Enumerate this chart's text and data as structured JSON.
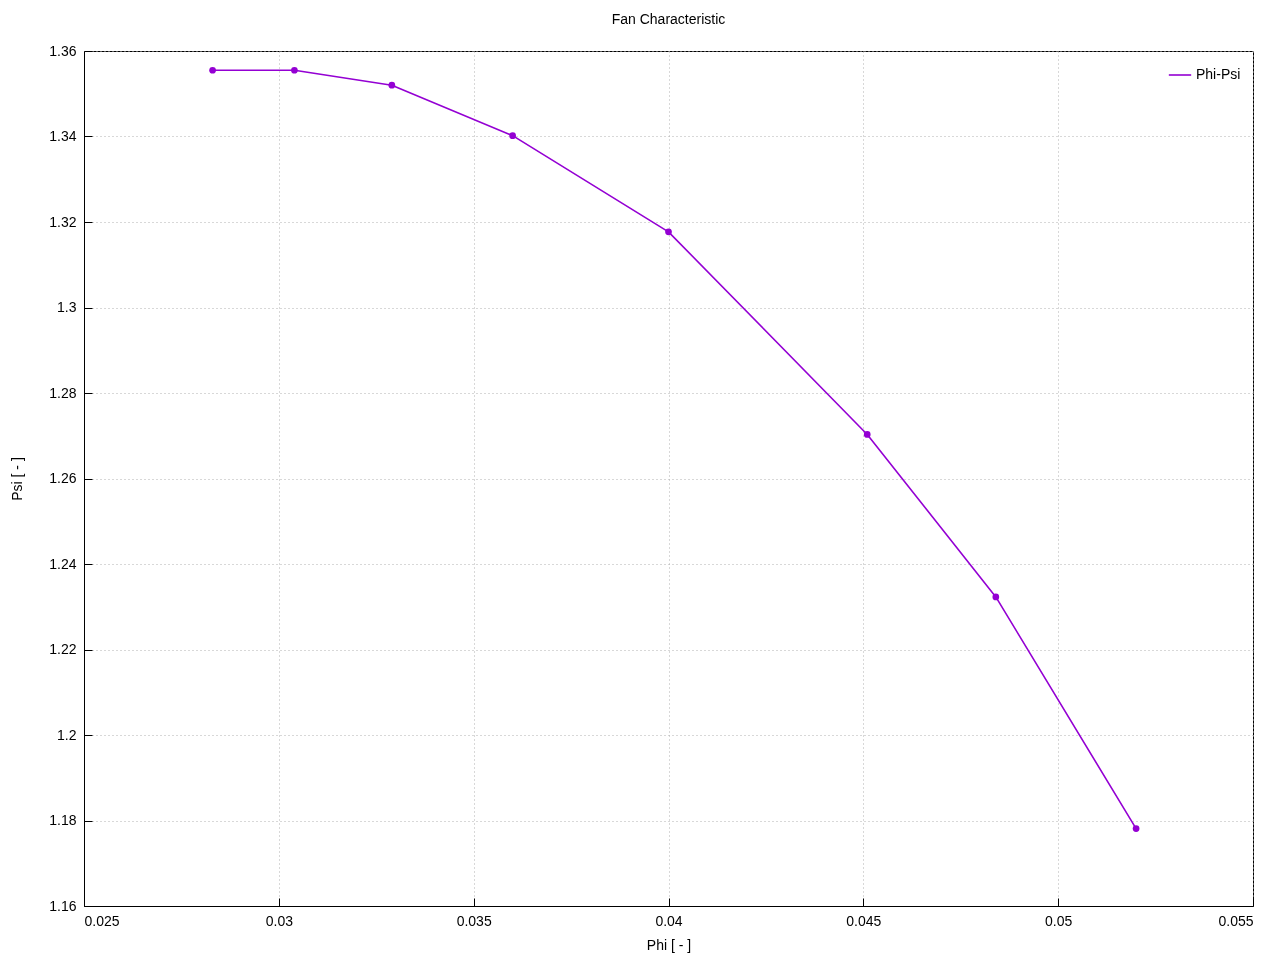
{
  "chart_data": {
    "type": "line",
    "title": "Fan Characteristic",
    "xlabel": "Phi [ - ]",
    "ylabel": "Psi [ - ]",
    "x": [
      0.0283,
      0.0304,
      0.0329,
      0.036,
      0.04,
      0.0451,
      0.0484,
      0.052
    ],
    "series": [
      {
        "name": "Phi-Psi",
        "color": "#9400d3",
        "values": [
          1.3555,
          1.3555,
          1.352,
          1.3402,
          1.3177,
          1.2703,
          1.2323,
          1.1781
        ]
      }
    ],
    "xlim": [
      0.025,
      0.055
    ],
    "xticks": [
      0.025,
      0.03,
      0.035,
      0.04,
      0.045,
      0.05,
      0.055
    ],
    "ylim": [
      1.16,
      1.36
    ],
    "yticks": [
      1.16,
      1.18,
      1.2,
      1.22,
      1.24,
      1.26,
      1.28,
      1.3,
      1.32,
      1.34,
      1.36
    ],
    "grid": true,
    "legend": "top right",
    "marker": "circle",
    "line_style": "solid"
  }
}
